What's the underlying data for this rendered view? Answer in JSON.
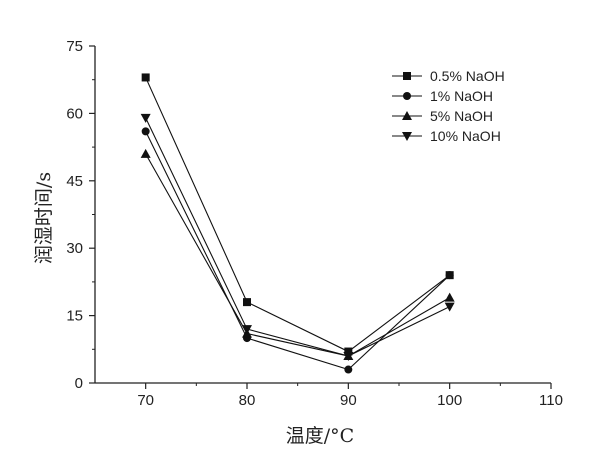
{
  "chart_data": {
    "type": "line",
    "xlabel": "温度/°C",
    "ylabel": "润湿时间/s",
    "xlim": [
      65,
      110
    ],
    "ylim": [
      0,
      75
    ],
    "xticks": [
      70,
      80,
      90,
      100,
      110
    ],
    "yticks": [
      0,
      15,
      30,
      45,
      60,
      75
    ],
    "x": [
      70,
      80,
      90,
      100
    ],
    "legend_position": "top-right",
    "grid": false,
    "series": [
      {
        "name": "0.5% NaOH",
        "marker": "square",
        "values": [
          68,
          18,
          7,
          24
        ]
      },
      {
        "name": "1% NaOH",
        "marker": "circle",
        "values": [
          56,
          10,
          3,
          24
        ]
      },
      {
        "name": "5% NaOH",
        "marker": "triangle-up",
        "values": [
          51,
          11,
          6,
          19
        ]
      },
      {
        "name": "10% NaOH",
        "marker": "triangle-down",
        "values": [
          59,
          12,
          6,
          17
        ]
      }
    ]
  }
}
